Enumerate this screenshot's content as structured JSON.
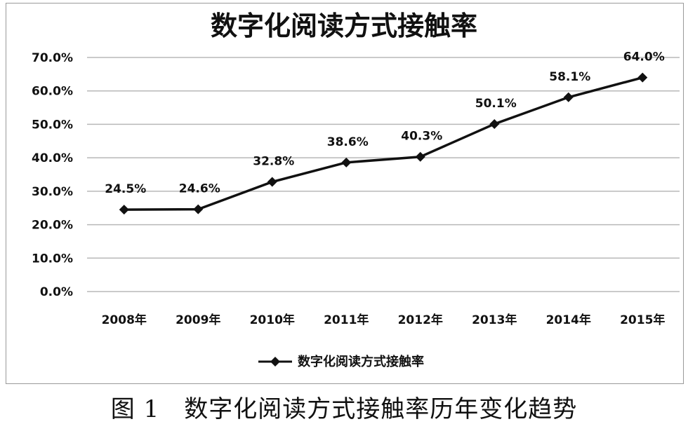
{
  "chart_data": {
    "type": "line",
    "title": "数字化阅读方式接触率",
    "categories": [
      "2008年",
      "2009年",
      "2010年",
      "2011年",
      "2012年",
      "2013年",
      "2014年",
      "2015年"
    ],
    "series": [
      {
        "name": "数字化阅读方式接触率",
        "values": [
          24.5,
          24.6,
          32.8,
          38.6,
          40.3,
          50.1,
          58.1,
          64.0
        ],
        "labels": [
          "24.5%",
          "24.6%",
          "32.8%",
          "38.6%",
          "40.3%",
          "50.1%",
          "58.1%",
          "64.0%"
        ],
        "color": "#111111",
        "marker": "diamond"
      }
    ],
    "yticks": [
      "0.0%",
      "10.0%",
      "20.0%",
      "30.0%",
      "40.0%",
      "50.0%",
      "60.0%",
      "70.0%"
    ],
    "ylim": [
      0,
      70
    ],
    "grid": true,
    "legend": "bottom"
  },
  "caption": "图 1　数字化阅读方式接触率历年变化趋势"
}
